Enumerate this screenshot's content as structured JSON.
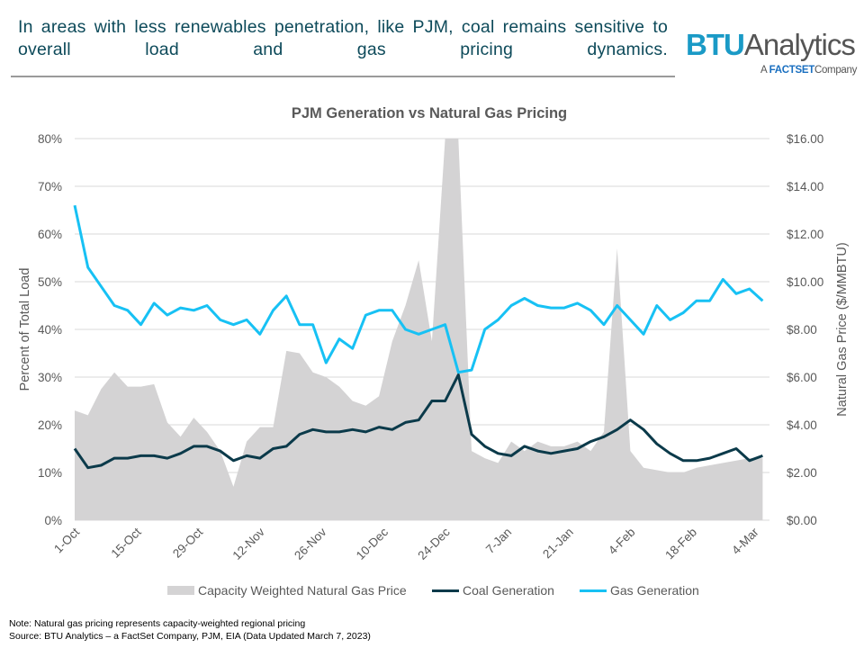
{
  "header": {
    "headline": "In areas with less renewables penetration, like PJM, coal remains sensitive to overall load and gas pricing dynamics.",
    "logo": {
      "brand": "BTU",
      "product": "Analytics",
      "tagline_prefix": "A",
      "tagline_brand": "FACTSET",
      "tagline_suffix": "Company"
    }
  },
  "chart_data": {
    "type": "line",
    "title": "PJM Generation vs Natural Gas Pricing",
    "ylabel": "Percent of Total Load",
    "y2label": "Natural Gas Price ($/MMBTU)",
    "ylim": [
      0,
      80
    ],
    "y2lim": [
      0,
      16
    ],
    "yticks": [
      "0%",
      "10%",
      "20%",
      "30%",
      "40%",
      "50%",
      "60%",
      "70%",
      "80%"
    ],
    "y2ticks": [
      "$0.00",
      "$2.00",
      "$4.00",
      "$6.00",
      "$8.00",
      "$10.00",
      "$12.00",
      "$14.00",
      "$16.00"
    ],
    "xticks": [
      "1-Oct",
      "15-Oct",
      "29-Oct",
      "12-Nov",
      "26-Nov",
      "10-Dec",
      "24-Dec",
      "7-Jan",
      "21-Jan",
      "4-Feb",
      "18-Feb",
      "4-Mar"
    ],
    "grid": true,
    "legend": "bottom",
    "x": [
      "1-Oct",
      "4-Oct",
      "7-Oct",
      "10-Oct",
      "13-Oct",
      "16-Oct",
      "19-Oct",
      "22-Oct",
      "25-Oct",
      "28-Oct",
      "31-Oct",
      "3-Nov",
      "6-Nov",
      "9-Nov",
      "12-Nov",
      "15-Nov",
      "18-Nov",
      "21-Nov",
      "24-Nov",
      "27-Nov",
      "30-Nov",
      "3-Dec",
      "6-Dec",
      "9-Dec",
      "12-Dec",
      "15-Dec",
      "18-Dec",
      "21-Dec",
      "24-Dec",
      "27-Dec",
      "30-Dec",
      "2-Jan",
      "5-Jan",
      "8-Jan",
      "11-Jan",
      "14-Jan",
      "17-Jan",
      "20-Jan",
      "23-Jan",
      "26-Jan",
      "29-Jan",
      "1-Feb",
      "4-Feb",
      "7-Feb",
      "10-Feb",
      "13-Feb",
      "16-Feb",
      "19-Feb",
      "22-Feb",
      "25-Feb",
      "28-Feb",
      "3-Mar",
      "6-Mar"
    ],
    "series": [
      {
        "name": "Capacity Weighted Natural Gas Price",
        "type": "area",
        "axis": "right",
        "color": "#d4d3d4",
        "values": [
          4.6,
          4.4,
          5.5,
          6.2,
          5.6,
          5.6,
          5.7,
          4.1,
          3.5,
          4.3,
          3.7,
          2.9,
          1.4,
          3.3,
          3.9,
          3.9,
          7.1,
          7.0,
          6.2,
          6.0,
          5.6,
          5.0,
          4.8,
          5.2,
          7.5,
          9.0,
          10.9,
          7.5,
          16,
          16,
          2.9,
          2.6,
          2.4,
          3.3,
          2.9,
          3.3,
          3.1,
          3.1,
          3.3,
          2.9,
          3.7,
          11.4,
          2.9,
          2.2,
          2.1,
          2.0,
          2.0,
          2.2,
          2.3,
          2.4,
          2.5,
          2.6,
          2.6
        ]
      },
      {
        "name": "Coal Generation",
        "type": "line",
        "axis": "left",
        "color": "#0b3a4a",
        "values": [
          15,
          11,
          11.5,
          13,
          13,
          13.5,
          13.5,
          13,
          14,
          15.5,
          15.5,
          14.5,
          12.5,
          13.5,
          13,
          15,
          15.5,
          18,
          19,
          18.5,
          18.5,
          19,
          18.5,
          19.5,
          19,
          20.5,
          21,
          25,
          25,
          30.5,
          18,
          15.5,
          14,
          13.5,
          15.5,
          14.5,
          14,
          14.5,
          15,
          16.5,
          17.5,
          19,
          21,
          19,
          16,
          14,
          12.5,
          12.5,
          13,
          14,
          15,
          12.5,
          13.5
        ]
      },
      {
        "name": "Gas Generation",
        "type": "line",
        "axis": "left",
        "color": "#17c1f4",
        "values": [
          66,
          53,
          49,
          45,
          44,
          41,
          45.5,
          43,
          44.5,
          44,
          45,
          42,
          41,
          42,
          39,
          44,
          47,
          41,
          41,
          33,
          38,
          36,
          43,
          44,
          44,
          40,
          39,
          40,
          41,
          31,
          31.5,
          40,
          42,
          45,
          46.5,
          45,
          44.5,
          44.5,
          45.5,
          44,
          41,
          45,
          42,
          39,
          45,
          42,
          43.5,
          46,
          46,
          50.5,
          47.5,
          48.5,
          46
        ]
      }
    ]
  },
  "notes": {
    "note": "Note: Natural gas pricing represents capacity-weighted regional pricing",
    "source": "Source: BTU Analytics – a FactSet Company, PJM, EIA (Data Updated March 7, 2023)"
  }
}
